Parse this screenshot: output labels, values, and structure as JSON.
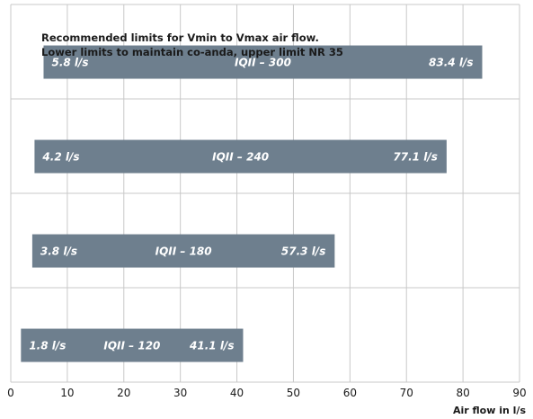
{
  "chart_data": {
    "type": "bar",
    "orientation": "horizontal-range",
    "annotation_lines": [
      "Recommended limits for Vmin to Vmax air flow.",
      "Lower limits to maintain co-anda, upper limit NR 35"
    ],
    "xlabel": "Air flow in l/s",
    "xlim": [
      0,
      90
    ],
    "xticks": [
      "0",
      "10",
      "20",
      "30",
      "40",
      "50",
      "60",
      "70",
      "80",
      "90"
    ],
    "grid": true,
    "bar_color": "#6e7f8e",
    "series": [
      {
        "name": "IQII – 300",
        "min": 5.8,
        "max": 83.4,
        "min_label": "5.8 l/s",
        "max_label": "83.4 l/s"
      },
      {
        "name": "IQII – 240",
        "min": 4.2,
        "max": 77.1,
        "min_label": "4.2 l/s",
        "max_label": "77.1 l/s"
      },
      {
        "name": "IQII – 180",
        "min": 3.8,
        "max": 57.3,
        "min_label": "3.8 l/s",
        "max_label": "57.3 l/s"
      },
      {
        "name": "IQII – 120",
        "min": 1.8,
        "max": 41.1,
        "min_label": "1.8 l/s",
        "max_label": "41.1 l/s"
      }
    ]
  }
}
